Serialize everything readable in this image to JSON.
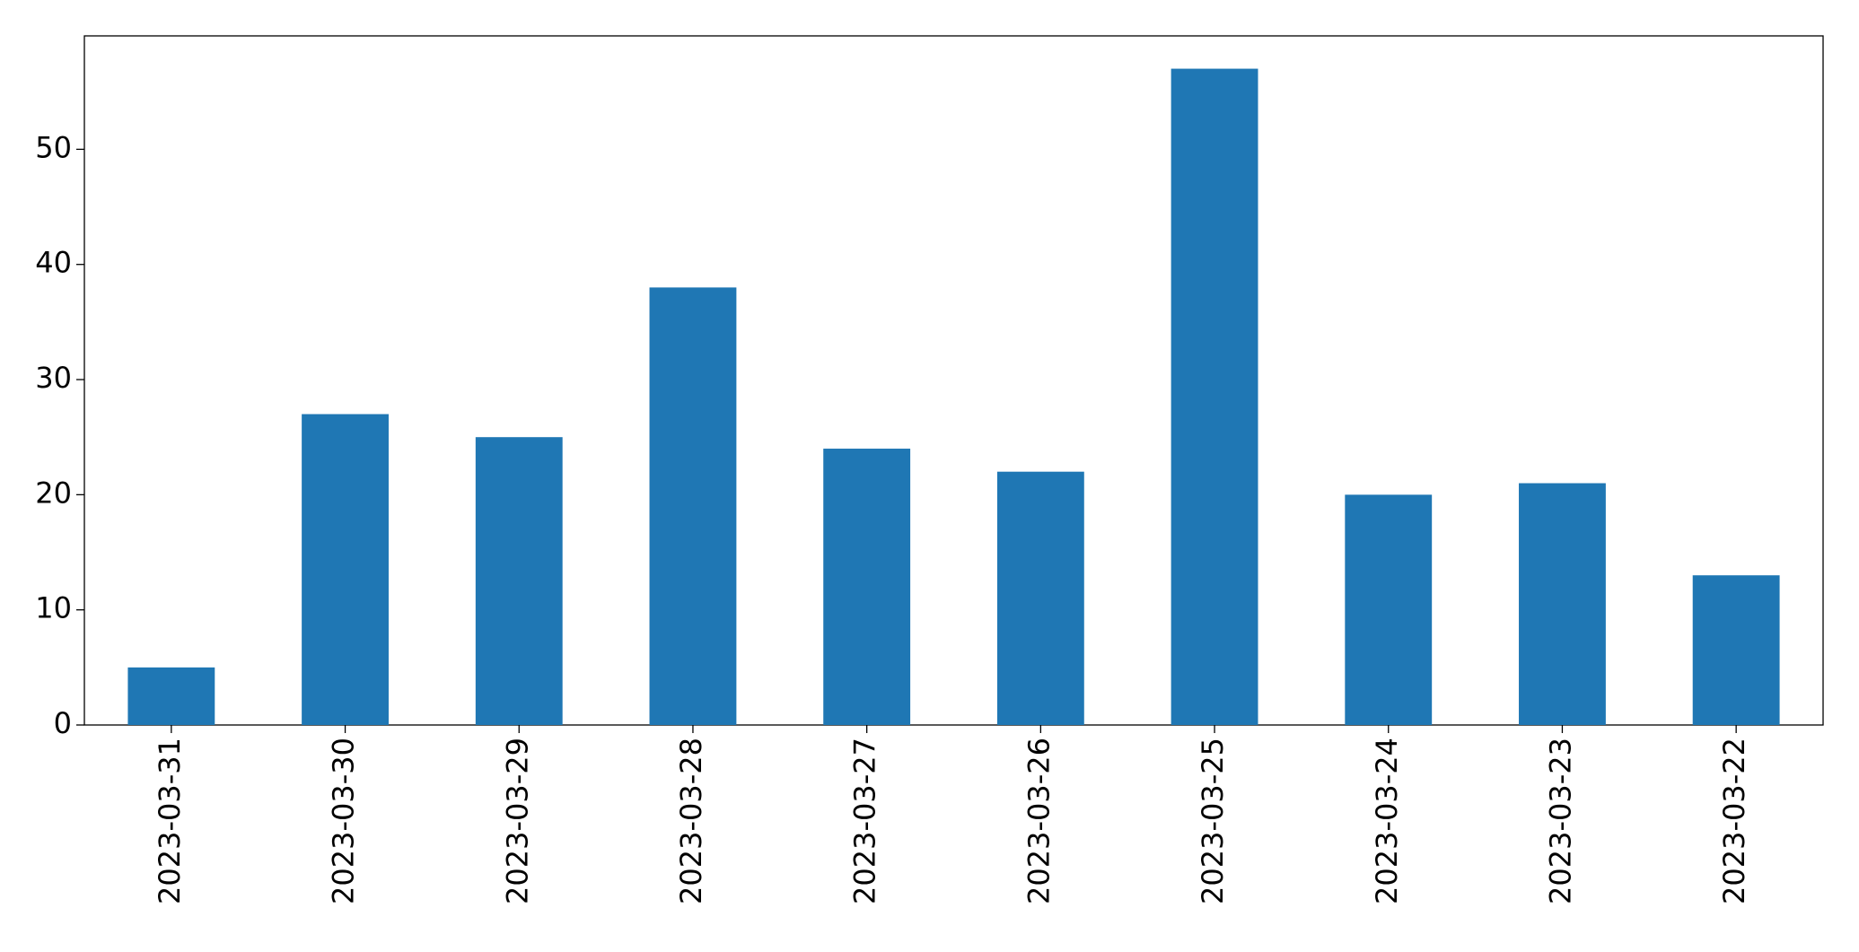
{
  "chart_data": {
    "type": "bar",
    "categories": [
      "2023-03-31",
      "2023-03-30",
      "2023-03-29",
      "2023-03-28",
      "2023-03-27",
      "2023-03-26",
      "2023-03-25",
      "2023-03-24",
      "2023-03-23",
      "2023-03-22"
    ],
    "values": [
      5,
      27,
      25,
      38,
      24,
      22,
      57,
      20,
      21,
      13
    ],
    "color": "#1f77b4",
    "ylim": [
      0,
      59.85
    ],
    "yticks": [
      0,
      10,
      20,
      30,
      40,
      50
    ],
    "grid": false
  }
}
